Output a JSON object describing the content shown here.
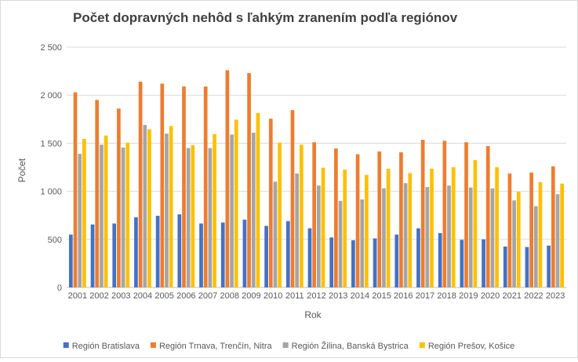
{
  "chart_data": {
    "type": "bar",
    "title": "Počet dopravných nehôd s ľahkým zranením podľa regiónov",
    "xlabel": "Rok",
    "ylabel": "Počet",
    "ylim": [
      0,
      2500
    ],
    "yticks": [
      0,
      500,
      1000,
      1500,
      2000,
      2500
    ],
    "ytick_labels": [
      "0",
      "500",
      "1 000",
      "1 500",
      "2 000",
      "2 500"
    ],
    "grid": true,
    "legend_position": "bottom",
    "categories": [
      "2001",
      "2002",
      "2003",
      "2004",
      "2005",
      "2006",
      "2007",
      "2008",
      "2009",
      "2010",
      "2011",
      "2012",
      "2013",
      "2014",
      "2015",
      "2016",
      "2017",
      "2018",
      "2019",
      "2020",
      "2021",
      "2022",
      "2023"
    ],
    "series": [
      {
        "name": "Región Bratislava",
        "color": "#4472C4",
        "values": [
          550,
          655,
          665,
          730,
          745,
          760,
          665,
          675,
          705,
          640,
          690,
          615,
          520,
          490,
          510,
          550,
          615,
          565,
          495,
          500,
          425,
          420,
          435
        ]
      },
      {
        "name": "Región Trnava, Trenčín, Nitra",
        "color": "#ED7D31",
        "values": [
          2030,
          1950,
          1860,
          2140,
          2120,
          2090,
          2090,
          2260,
          2230,
          1755,
          1845,
          1510,
          1445,
          1385,
          1415,
          1405,
          1535,
          1525,
          1510,
          1470,
          1185,
          1195,
          1260
        ]
      },
      {
        "name": "Región Žilina, Banská Bystrica",
        "color": "#A5A5A5",
        "values": [
          1390,
          1485,
          1455,
          1690,
          1600,
          1450,
          1450,
          1590,
          1610,
          1100,
          1185,
          1060,
          900,
          915,
          1030,
          1085,
          1045,
          1060,
          1040,
          1030,
          905,
          845,
          970
        ]
      },
      {
        "name": "Región Prešov, Košice",
        "color": "#FFC000",
        "values": [
          1545,
          1580,
          1505,
          1645,
          1680,
          1480,
          1595,
          1745,
          1815,
          1505,
          1485,
          1245,
          1225,
          1170,
          1235,
          1190,
          1235,
          1250,
          1325,
          1250,
          995,
          1095,
          1080
        ]
      }
    ]
  }
}
